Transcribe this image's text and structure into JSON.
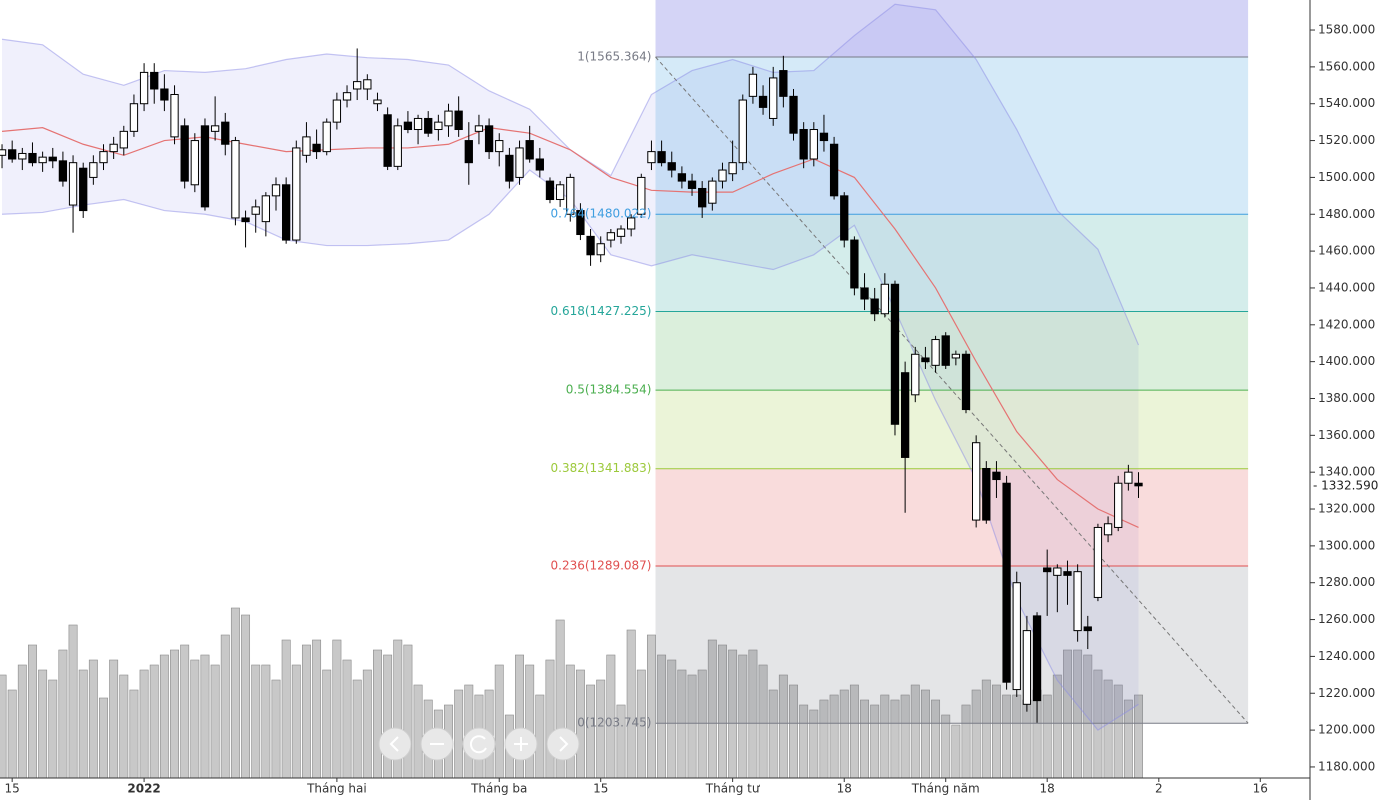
{
  "chart_data": {
    "type": "candlestick",
    "xlim": [
      -0.2,
      128.9
    ],
    "xticks": [
      {
        "value": 1,
        "label": "15"
      },
      {
        "value": 14,
        "label": "2022"
      },
      {
        "value": 33,
        "label": "Tháng hai"
      },
      {
        "value": 49,
        "label": "Tháng ba"
      },
      {
        "value": 59,
        "label": "15"
      },
      {
        "value": 72,
        "label": "Tháng tư"
      },
      {
        "value": 83,
        "label": "18"
      },
      {
        "value": 93,
        "label": "Tháng năm"
      },
      {
        "value": 103,
        "label": "18"
      },
      {
        "value": 114,
        "label": "2"
      },
      {
        "value": 124,
        "label": "16"
      }
    ],
    "ylim": [
      1174,
      1596.3
    ],
    "yticks": [
      {
        "value": 1180,
        "label": "1180.000"
      },
      {
        "value": 1200,
        "label": "1200.000"
      },
      {
        "value": 1220,
        "label": "1220.000"
      },
      {
        "value": 1240,
        "label": "1240.000"
      },
      {
        "value": 1260,
        "label": "1260.000"
      },
      {
        "value": 1280,
        "label": "1280.000"
      },
      {
        "value": 1300,
        "label": "1300.000"
      },
      {
        "value": 1320,
        "label": "1320.000"
      },
      {
        "value": 1340,
        "label": "1340.000"
      },
      {
        "value": 1360,
        "label": "1360.000"
      },
      {
        "value": 1380,
        "label": "1380.000"
      },
      {
        "value": 1400,
        "label": "1400.000"
      },
      {
        "value": 1420,
        "label": "1420.000"
      },
      {
        "value": 1440,
        "label": "1440.000"
      },
      {
        "value": 1460,
        "label": "1460.000"
      },
      {
        "value": 1480,
        "label": "1480.000"
      },
      {
        "value": 1500,
        "label": "1500.000"
      },
      {
        "value": 1520,
        "label": "1520.000"
      },
      {
        "value": 1540,
        "label": "1540.000"
      },
      {
        "value": 1560,
        "label": "1560.000"
      },
      {
        "value": 1580,
        "label": "1580.000"
      }
    ],
    "last_price": {
      "value": 1332.59,
      "label": "- 1332.590"
    },
    "up_color": "#ffffff",
    "down_color": "#000000",
    "candles": [
      [
        1512,
        1518,
        1505,
        1515
      ],
      [
        1515,
        1520,
        1508,
        1510
      ],
      [
        1510,
        1516,
        1504,
        1513
      ],
      [
        1513,
        1519,
        1506,
        1508
      ],
      [
        1508,
        1514,
        1503,
        1511
      ],
      [
        1511,
        1516,
        1505,
        1509
      ],
      [
        1509,
        1514,
        1495,
        1498
      ],
      [
        1485,
        1512,
        1470,
        1508
      ],
      [
        1505,
        1508,
        1478,
        1482
      ],
      [
        1500,
        1512,
        1496,
        1508
      ],
      [
        1508,
        1518,
        1504,
        1514
      ],
      [
        1514,
        1522,
        1510,
        1518
      ],
      [
        1516,
        1528,
        1512,
        1525
      ],
      [
        1525,
        1545,
        1522,
        1540
      ],
      [
        1540,
        1562,
        1536,
        1557
      ],
      [
        1557,
        1562,
        1540,
        1548
      ],
      [
        1548,
        1556,
        1536,
        1542
      ],
      [
        1522,
        1550,
        1518,
        1545
      ],
      [
        1528,
        1532,
        1494,
        1498
      ],
      [
        1496,
        1524,
        1492,
        1520
      ],
      [
        1528,
        1532,
        1482,
        1484
      ],
      [
        1525,
        1544,
        1520,
        1528
      ],
      [
        1530,
        1535,
        1512,
        1518
      ],
      [
        1478,
        1522,
        1474,
        1520
      ],
      [
        1478,
        1482,
        1462,
        1476
      ],
      [
        1480,
        1488,
        1470,
        1484
      ],
      [
        1476,
        1492,
        1468,
        1490
      ],
      [
        1490,
        1500,
        1482,
        1496
      ],
      [
        1496,
        1500,
        1464,
        1466
      ],
      [
        1466,
        1520,
        1464,
        1516
      ],
      [
        1512,
        1530,
        1508,
        1522
      ],
      [
        1518,
        1526,
        1510,
        1514
      ],
      [
        1514,
        1532,
        1512,
        1530
      ],
      [
        1530,
        1546,
        1526,
        1542
      ],
      [
        1542,
        1550,
        1538,
        1546
      ],
      [
        1548,
        1570,
        1542,
        1552
      ],
      [
        1548,
        1556,
        1542,
        1553
      ],
      [
        1540,
        1546,
        1536,
        1542
      ],
      [
        1534,
        1538,
        1504,
        1506
      ],
      [
        1506,
        1532,
        1504,
        1528
      ],
      [
        1530,
        1536,
        1524,
        1526
      ],
      [
        1526,
        1534,
        1518,
        1532
      ],
      [
        1532,
        1536,
        1522,
        1524
      ],
      [
        1526,
        1534,
        1520,
        1530
      ],
      [
        1528,
        1540,
        1522,
        1536
      ],
      [
        1536,
        1544,
        1522,
        1526
      ],
      [
        1520,
        1530,
        1496,
        1508
      ],
      [
        1525,
        1534,
        1518,
        1528
      ],
      [
        1528,
        1532,
        1510,
        1514
      ],
      [
        1514,
        1524,
        1506,
        1520
      ],
      [
        1512,
        1516,
        1494,
        1498
      ],
      [
        1500,
        1520,
        1496,
        1516
      ],
      [
        1520,
        1528,
        1508,
        1510
      ],
      [
        1510,
        1516,
        1500,
        1504
      ],
      [
        1498,
        1500,
        1486,
        1488
      ],
      [
        1488,
        1498,
        1484,
        1496
      ],
      [
        1480,
        1502,
        1476,
        1500
      ],
      [
        1482,
        1486,
        1466,
        1469
      ],
      [
        1468,
        1472,
        1452,
        1458
      ],
      [
        1458,
        1468,
        1454,
        1464
      ],
      [
        1466,
        1472,
        1462,
        1470
      ],
      [
        1468,
        1474,
        1464,
        1472
      ],
      [
        1472,
        1480,
        1468,
        1478
      ],
      [
        1480,
        1502,
        1478,
        1500
      ],
      [
        1508,
        1520,
        1504,
        1514
      ],
      [
        1514,
        1520,
        1506,
        1508
      ],
      [
        1508,
        1514,
        1500,
        1504
      ],
      [
        1502,
        1506,
        1494,
        1498
      ],
      [
        1498,
        1502,
        1490,
        1494
      ],
      [
        1494,
        1498,
        1478,
        1484
      ],
      [
        1486,
        1500,
        1482,
        1498
      ],
      [
        1498,
        1508,
        1494,
        1504
      ],
      [
        1502,
        1520,
        1498,
        1508
      ],
      [
        1508,
        1545,
        1504,
        1542
      ],
      [
        1544,
        1560,
        1540,
        1556
      ],
      [
        1544,
        1550,
        1534,
        1538
      ],
      [
        1532,
        1560,
        1528,
        1554
      ],
      [
        1558,
        1566,
        1538,
        1544
      ],
      [
        1544,
        1548,
        1520,
        1524
      ],
      [
        1526,
        1530,
        1505,
        1510
      ],
      [
        1510,
        1530,
        1506,
        1526
      ],
      [
        1524,
        1534,
        1514,
        1520
      ],
      [
        1518,
        1522,
        1488,
        1490
      ],
      [
        1490,
        1492,
        1462,
        1466
      ],
      [
        1466,
        1468,
        1436,
        1440
      ],
      [
        1440,
        1448,
        1428,
        1434
      ],
      [
        1434,
        1440,
        1422,
        1426
      ],
      [
        1426,
        1448,
        1424,
        1442
      ],
      [
        1442,
        1444,
        1360,
        1366
      ],
      [
        1394,
        1400,
        1318,
        1348
      ],
      [
        1382,
        1408,
        1378,
        1404
      ],
      [
        1402,
        1408,
        1396,
        1400
      ],
      [
        1398,
        1414,
        1394,
        1412
      ],
      [
        1414,
        1416,
        1396,
        1398
      ],
      [
        1402,
        1406,
        1398,
        1404
      ],
      [
        1404,
        1406,
        1372,
        1374
      ],
      [
        1314,
        1360,
        1310,
        1356
      ],
      [
        1342,
        1346,
        1312,
        1314
      ],
      [
        1340,
        1346,
        1326,
        1336
      ],
      [
        1334,
        1338,
        1222,
        1226
      ],
      [
        1222,
        1286,
        1218,
        1280
      ],
      [
        1214,
        1262,
        1210,
        1254
      ],
      [
        1262,
        1264,
        1204,
        1216
      ],
      [
        1288,
        1298,
        1262,
        1286
      ],
      [
        1284,
        1290,
        1264,
        1288
      ],
      [
        1286,
        1292,
        1268,
        1284
      ],
      [
        1254,
        1290,
        1248,
        1286
      ],
      [
        1256,
        1262,
        1244,
        1254
      ],
      [
        1272,
        1312,
        1270,
        1310
      ],
      [
        1306,
        1316,
        1302,
        1312
      ],
      [
        1310,
        1338,
        1308,
        1334
      ],
      [
        1334,
        1344,
        1330,
        1340
      ],
      [
        1334,
        1340,
        1326,
        1332.59
      ]
    ],
    "volume_lim": [
      0,
      200
    ],
    "volume_color": "#c8c8c8",
    "volume": [
      103,
      88,
      113,
      133,
      108,
      98,
      128,
      153,
      108,
      118,
      80,
      118,
      103,
      88,
      108,
      113,
      123,
      128,
      133,
      118,
      123,
      113,
      143,
      170,
      163,
      113,
      113,
      98,
      138,
      113,
      133,
      138,
      108,
      138,
      118,
      98,
      108,
      128,
      123,
      138,
      133,
      93,
      78,
      68,
      73,
      88,
      93,
      83,
      88,
      113,
      63,
      123,
      113,
      83,
      118,
      158,
      113,
      108,
      93,
      98,
      123,
      73,
      148,
      108,
      143,
      123,
      118,
      108,
      103,
      108,
      138,
      133,
      128,
      123,
      128,
      113,
      88,
      103,
      93,
      73,
      68,
      78,
      83,
      88,
      93,
      78,
      73,
      83,
      78,
      83,
      93,
      88,
      78,
      63,
      53,
      73,
      88,
      98,
      93,
      83,
      83,
      78,
      88,
      83,
      103,
      128,
      128,
      123,
      108,
      98,
      93,
      78,
      83
    ],
    "overlay_x": [
      0,
      4,
      8,
      12,
      16,
      20,
      24,
      28,
      32,
      36,
      40,
      44,
      48,
      52,
      56,
      60,
      64,
      68,
      72,
      76,
      80,
      84,
      88,
      92,
      96,
      100,
      104,
      108,
      112
    ],
    "ma": {
      "color": "#e57373",
      "values": [
        1525,
        1527,
        1518,
        1512,
        1520,
        1522,
        1518,
        1514,
        1515,
        1516,
        1516,
        1518,
        1527,
        1524,
        1515,
        1500,
        1493,
        1492,
        1492,
        1502,
        1510,
        1500,
        1472,
        1440,
        1400,
        1362,
        1336,
        1320,
        1310
      ]
    },
    "bb_color": "#8c8ce6",
    "bb_upper": [
      1575,
      1572,
      1556,
      1550,
      1558,
      1557,
      1559,
      1564,
      1567,
      1565,
      1564,
      1561,
      1547,
      1537,
      1515,
      1501,
      1545,
      1558,
      1564,
      1557,
      1558,
      1577,
      1594,
      1591,
      1564,
      1526,
      1482,
      1461,
      1409
    ],
    "bb_lower": [
      1480,
      1481,
      1485,
      1488,
      1482,
      1480,
      1476,
      1466,
      1463,
      1463,
      1464,
      1466,
      1480,
      1504,
      1488,
      1458,
      1452,
      1458,
      1454,
      1450,
      1458,
      1474,
      1428,
      1379,
      1336,
      1271,
      1227,
      1200,
      1214
    ],
    "fib": {
      "x_start": 64.4,
      "x_end": 122.8,
      "levels": [
        {
          "value": 1565.364,
          "label": "1(1565.364)",
          "color": "#787b86"
        },
        {
          "value": 1480.022,
          "label": "0.764(1480.022)",
          "color": "#3f9ee0"
        },
        {
          "value": 1427.225,
          "label": "0.618(1427.225)",
          "color": "#26a69a"
        },
        {
          "value": 1384.554,
          "label": "0.5(1384.554)",
          "color": "#4caf50"
        },
        {
          "value": 1341.883,
          "label": "0.382(1341.883)",
          "color": "#9cc93b"
        },
        {
          "value": 1289.087,
          "label": "0.236(1289.087)",
          "color": "#e05050"
        },
        {
          "value": 1203.745,
          "label": "0(1203.745)",
          "color": "#787b86"
        }
      ]
    }
  }
}
